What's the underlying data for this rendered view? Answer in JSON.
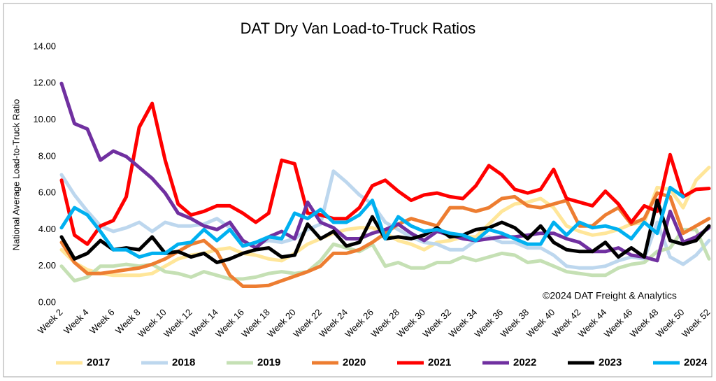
{
  "chart_data": {
    "type": "line",
    "title": "DAT Dry Van Load-to-Truck Ratios",
    "y_label": "National Average Load-to-Truck Ratio",
    "annotation": "©2024 DAT Freight & Analytics",
    "categories": [
      "Week 2",
      null,
      "Week 4",
      null,
      "Week 6",
      null,
      "Week 8",
      null,
      "Week 10",
      null,
      "Week 12",
      null,
      "Week 14",
      null,
      "Week 16",
      null,
      "Week 18",
      null,
      "Week 20",
      null,
      "Week 22",
      null,
      "Week 24",
      null,
      "Week 26",
      null,
      "Week 28",
      null,
      "Week 30",
      null,
      "Week 32",
      null,
      "Week 34",
      null,
      "Week 36",
      null,
      "Week 38",
      null,
      "Week 40",
      null,
      "Week 42",
      null,
      "Week 44",
      null,
      "Week 46",
      null,
      "Week 48",
      null,
      "Week 50",
      null,
      "Week 52"
    ],
    "ylim": [
      0,
      14
    ],
    "yticks": [
      {
        "value": 0,
        "label": "0.00"
      },
      {
        "value": 2,
        "label": "2.00"
      },
      {
        "value": 4,
        "label": "4.00"
      },
      {
        "value": 6,
        "label": "6.00"
      },
      {
        "value": 8,
        "label": "8.00"
      },
      {
        "value": 10,
        "label": "10.00"
      },
      {
        "value": 12,
        "label": "12.00"
      },
      {
        "value": 14,
        "label": "14.00"
      }
    ],
    "grid": false,
    "legend": "bottom",
    "series": [
      {
        "name": "2017",
        "color": "#ffe699",
        "values": [
          2.9,
          2.2,
          1.8,
          1.6,
          1.5,
          1.5,
          1.5,
          1.6,
          2.0,
          2.4,
          2.6,
          2.7,
          2.9,
          3.0,
          2.7,
          2.6,
          2.4,
          2.3,
          2.7,
          3.2,
          3.5,
          3.8,
          4.0,
          4.1,
          4.1,
          3.8,
          3.4,
          3.2,
          2.9,
          3.3,
          3.4,
          3.6,
          3.6,
          4.3,
          5.0,
          5.4,
          5.5,
          5.7,
          5.2,
          4.2,
          3.9,
          3.7,
          3.8,
          4.0,
          4.3,
          4.4,
          6.3,
          6.2,
          5.2,
          6.7,
          7.4
        ]
      },
      {
        "name": "2018",
        "color": "#bdd7ee",
        "values": [
          7.0,
          5.9,
          5.0,
          4.2,
          3.9,
          4.1,
          4.4,
          3.9,
          4.4,
          4.2,
          4.2,
          4.3,
          4.6,
          4.1,
          3.2,
          3.2,
          3.4,
          3.3,
          3.5,
          4.0,
          4.3,
          7.2,
          6.6,
          5.9,
          5.4,
          4.4,
          4.0,
          3.6,
          3.3,
          3.2,
          2.9,
          2.9,
          3.4,
          3.6,
          3.3,
          3.3,
          3.0,
          3.0,
          2.6,
          2.0,
          1.9,
          1.9,
          2.0,
          2.3,
          2.5,
          2.4,
          4.4,
          2.5,
          2.1,
          2.6,
          3.4
        ]
      },
      {
        "name": "2019",
        "color": "#c5e0b4",
        "values": [
          2.0,
          1.2,
          1.4,
          2.0,
          2.0,
          2.1,
          2.0,
          2.1,
          1.7,
          1.6,
          1.4,
          1.7,
          1.5,
          1.3,
          1.3,
          1.4,
          1.6,
          1.7,
          1.6,
          1.7,
          2.3,
          3.2,
          3.0,
          2.8,
          3.2,
          2.0,
          2.2,
          1.9,
          1.9,
          2.2,
          2.2,
          2.5,
          2.3,
          2.5,
          2.7,
          2.6,
          2.2,
          2.3,
          2.0,
          1.7,
          1.6,
          1.5,
          1.5,
          1.9,
          2.1,
          2.2,
          2.8,
          3.0,
          4.0,
          4.0,
          2.4
        ]
      },
      {
        "name": "2020",
        "color": "#ed7d31",
        "values": [
          3.3,
          2.2,
          1.6,
          1.6,
          1.7,
          1.8,
          1.9,
          2.1,
          2.4,
          2.8,
          3.2,
          3.4,
          2.8,
          1.5,
          0.9,
          0.9,
          0.95,
          1.2,
          1.45,
          1.7,
          2.0,
          2.7,
          2.7,
          2.9,
          3.3,
          3.8,
          4.3,
          4.6,
          4.4,
          4.2,
          5.2,
          5.2,
          5.0,
          5.2,
          5.7,
          5.8,
          5.3,
          5.2,
          5.4,
          5.6,
          4.2,
          4.2,
          4.8,
          5.2,
          4.3,
          4.6,
          6.0,
          5.8,
          3.8,
          4.2,
          4.6
        ]
      },
      {
        "name": "2021",
        "color": "#ff0000",
        "values": [
          6.7,
          3.7,
          3.2,
          4.2,
          4.5,
          5.8,
          9.6,
          10.9,
          7.8,
          5.4,
          4.8,
          5.0,
          5.3,
          5.3,
          4.9,
          4.4,
          4.9,
          7.8,
          7.6,
          4.9,
          4.8,
          4.6,
          4.6,
          5.2,
          6.4,
          6.7,
          6.1,
          5.6,
          5.9,
          6.0,
          5.8,
          5.7,
          6.4,
          7.5,
          7.0,
          6.2,
          6.0,
          6.2,
          7.3,
          5.7,
          5.5,
          5.3,
          6.1,
          5.4,
          4.4,
          5.3,
          5.0,
          8.1,
          5.8,
          6.2,
          6.25
        ]
      },
      {
        "name": "2022",
        "color": "#7030a0",
        "values": [
          12.0,
          9.8,
          9.5,
          7.8,
          8.3,
          8.0,
          7.4,
          6.8,
          6.0,
          4.9,
          4.6,
          4.2,
          4.0,
          4.4,
          3.4,
          3.0,
          3.6,
          3.9,
          3.5,
          5.5,
          4.4,
          4.1,
          3.5,
          3.5,
          3.8,
          4.0,
          4.3,
          3.8,
          3.4,
          3.9,
          3.7,
          3.5,
          3.4,
          3.5,
          3.6,
          3.6,
          3.7,
          3.8,
          3.8,
          3.5,
          3.3,
          2.8,
          2.8,
          3.0,
          2.6,
          2.5,
          2.3,
          5.0,
          3.3,
          3.6,
          4.1
        ]
      },
      {
        "name": "2023",
        "color": "#000000",
        "values": [
          3.6,
          2.4,
          2.7,
          3.4,
          2.9,
          3.0,
          2.9,
          3.6,
          2.7,
          2.8,
          2.5,
          2.7,
          2.2,
          2.4,
          2.7,
          2.9,
          3.0,
          2.5,
          2.6,
          4.3,
          3.5,
          3.9,
          3.1,
          3.3,
          4.7,
          3.5,
          3.6,
          3.5,
          3.7,
          4.1,
          3.6,
          3.7,
          4.0,
          4.1,
          4.4,
          4.1,
          3.5,
          4.2,
          3.3,
          2.9,
          2.8,
          2.8,
          3.3,
          2.5,
          3.0,
          2.5,
          5.6,
          3.4,
          3.2,
          3.4,
          4.2
        ]
      },
      {
        "name": "2024",
        "color": "#00b0f0",
        "values": [
          4.1,
          5.2,
          4.8,
          3.9,
          2.9,
          2.9,
          2.5,
          2.7,
          2.7,
          3.2,
          3.3,
          4.0,
          3.4,
          4.0,
          3.1,
          3.3,
          3.6,
          3.5,
          4.9,
          4.6,
          5.1,
          4.4,
          4.4,
          4.8,
          5.6,
          3.5,
          4.7,
          4.2,
          3.9,
          4.0,
          3.8,
          3.7,
          3.4,
          4.0,
          3.8,
          3.5,
          3.2,
          3.2,
          4.4,
          3.7,
          4.4,
          4.1,
          4.2,
          4.0,
          3.5,
          4.4,
          3.8,
          6.3,
          5.8,
          null,
          null
        ]
      }
    ]
  }
}
